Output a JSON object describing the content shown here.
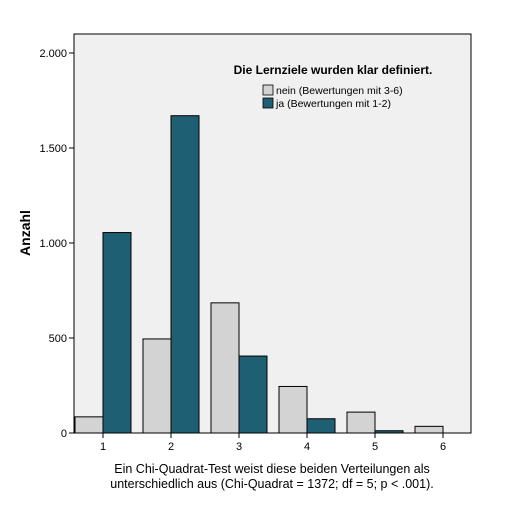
{
  "chart_data": {
    "type": "bar",
    "title": "Die Lernziele wurden klar definiert.",
    "ylabel": "Anzahl",
    "xlabel": "",
    "categories": [
      "1",
      "2",
      "3",
      "4",
      "5",
      "6"
    ],
    "ylim": [
      0,
      2000
    ],
    "yticks": [
      0,
      500,
      1000,
      1500,
      2000
    ],
    "ytick_labels": [
      "0",
      "500",
      "1.000",
      "1.500",
      "2.000"
    ],
    "grid": false,
    "legend_position": "top-right",
    "series": [
      {
        "name": "nein (Bewertungen mit 3-6)",
        "color": "#d3d3d3",
        "values": [
          85,
          495,
          685,
          245,
          110,
          35
        ]
      },
      {
        "name": "ja (Bewertungen mit 1-2)",
        "color": "#1f5f74",
        "values": [
          1055,
          1670,
          405,
          75,
          12,
          null
        ]
      }
    ],
    "caption_lines": [
      "Ein Chi-Quadrat-Test weist diese beiden Verteilungen als",
      "unterschiedlich aus (Chi-Quadrat = 1372; df = 5; p < .001)."
    ],
    "plot_background": "#f0f0f0"
  }
}
